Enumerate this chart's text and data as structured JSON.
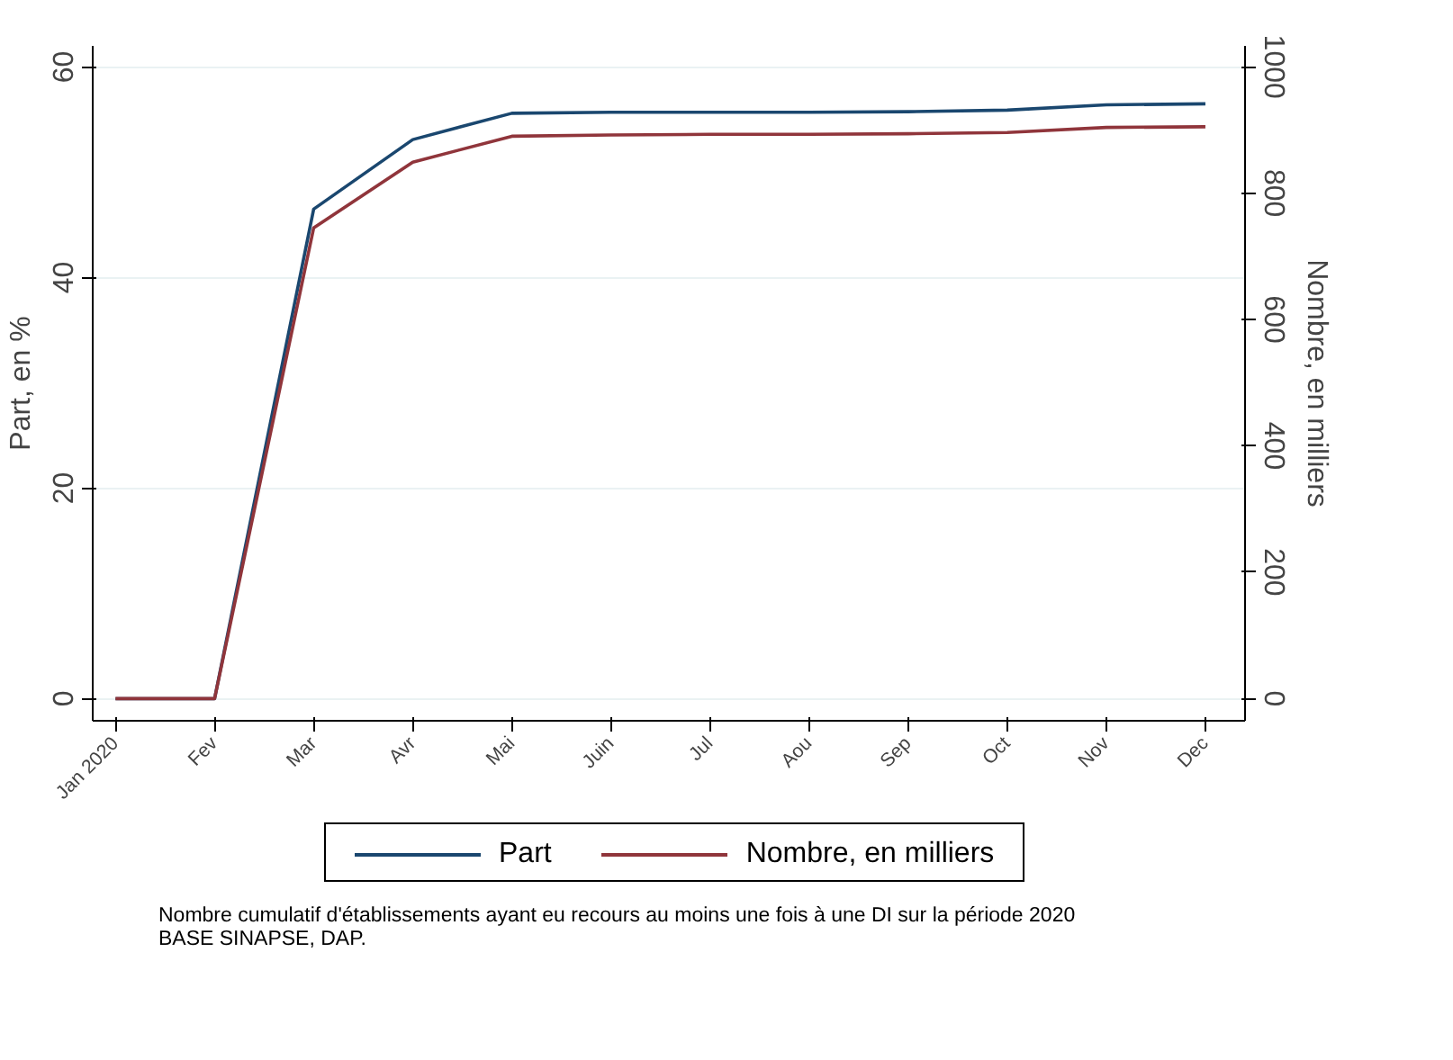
{
  "chart_data": {
    "type": "line",
    "categories": [
      "Jan 2020",
      "Fev",
      "Mar",
      "Avr",
      "Mai",
      "Juin",
      "Jul",
      "Aou",
      "Sep",
      "Oct",
      "Nov",
      "Dec"
    ],
    "series": [
      {
        "name": "Part",
        "color": "#1a476f",
        "values": [
          0,
          0,
          46.5,
          53.1,
          55.6,
          55.7,
          55.7,
          55.7,
          55.75,
          55.9,
          56.4,
          56.5
        ]
      },
      {
        "name": "Nombre, en milliers",
        "color": "#90353b",
        "axis": "y2",
        "values": [
          0,
          0,
          745,
          849,
          890,
          892,
          893,
          893,
          894,
          896,
          904,
          905
        ]
      }
    ],
    "ylabel": "Part, en %",
    "y2label": "Nombre, en milliers",
    "ylim": [
      -2.1,
      62
    ],
    "yticks": [
      0,
      20,
      40,
      60
    ],
    "y2lim": [
      -35,
      1033
    ],
    "y2ticks": [
      0,
      200,
      400,
      600,
      800,
      1000
    ],
    "grid": "y",
    "legend": "bottom",
    "line_style": "solid",
    "annotations": [
      "Nombre cumulatif d'établissements ayant eu recours au moins une fois à une DI sur la période 2020",
      "BASE SINAPSE, DAP."
    ]
  }
}
